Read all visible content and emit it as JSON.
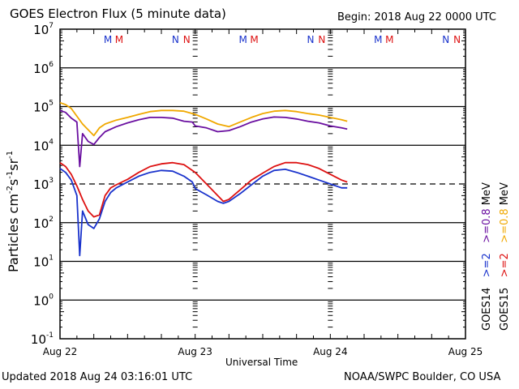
{
  "header": {
    "title": "GOES Electron Flux (5 minute data)",
    "begin": "Begin: 2018 Aug 22 0000 UTC"
  },
  "footer": {
    "updated": "Updated 2018 Aug 24 03:16:01 UTC",
    "credit": "NOAA/SWPC Boulder, CO USA"
  },
  "chart_data": {
    "type": "line",
    "title": "GOES Electron Flux (5 minute data)",
    "xlabel": "Universal Time",
    "ylabel": "Particles cm-2s-1sr-1",
    "ylabel_parts": {
      "main": "Particles cm",
      "e1": "-2",
      "s": "s",
      "e2": "-1",
      "sr": "sr",
      "e3": "-1"
    },
    "xlim_hours": [
      0,
      72
    ],
    "ylim_log10": [
      -1,
      7
    ],
    "yscale": "log",
    "x_tick_labels": [
      "Aug 22",
      "Aug 23",
      "Aug 24",
      "Aug 25"
    ],
    "y_tick_labels": [
      {
        "base": "10",
        "exp": "7"
      },
      {
        "base": "10",
        "exp": "6"
      },
      {
        "base": "10",
        "exp": "5"
      },
      {
        "base": "10",
        "exp": "4"
      },
      {
        "base": "10",
        "exp": "3"
      },
      {
        "base": "10",
        "exp": "2"
      },
      {
        "base": "10",
        "exp": "1"
      },
      {
        "base": "10",
        "exp": "0"
      },
      {
        "base": "10",
        "exp": "-1"
      }
    ],
    "threshold_log10": 3,
    "grid": true,
    "markers": [
      {
        "label": "M",
        "color": "#1a33cc"
      },
      {
        "label": "M",
        "color": "#dd1111"
      },
      {
        "label": "N",
        "color": "#1a33cc"
      },
      {
        "label": "N",
        "color": "#dd1111"
      }
    ],
    "legend": {
      "placement": "right-vertical",
      "rows": [
        {
          "sat": "GOES14",
          "items": [
            {
              "text": ">=2",
              "color": "#1a33cc"
            },
            {
              "text": ">=0.8",
              "color": "#6a0fa0"
            }
          ],
          "unit": "MeV"
        },
        {
          "sat": "GOES15",
          "items": [
            {
              "text": ">=2",
              "color": "#dd1111"
            },
            {
              "text": ">=0.8",
              "color": "#f0a800"
            }
          ],
          "unit": "MeV"
        }
      ]
    },
    "series": [
      {
        "name": "GOES15 >=0.8 MeV",
        "color": "#f0a800",
        "x": [
          0,
          1,
          2,
          3,
          4,
          5,
          6,
          7,
          8,
          10,
          12,
          14,
          16,
          18,
          20,
          22,
          24,
          26,
          28,
          30,
          32,
          34,
          36,
          38,
          40,
          42,
          44,
          46,
          48,
          50,
          51
        ],
        "y": [
          5.1,
          5.05,
          4.95,
          4.75,
          4.55,
          4.4,
          4.25,
          4.45,
          4.55,
          4.65,
          4.72,
          4.8,
          4.87,
          4.9,
          4.9,
          4.88,
          4.8,
          4.68,
          4.55,
          4.48,
          4.6,
          4.72,
          4.82,
          4.88,
          4.9,
          4.87,
          4.82,
          4.78,
          4.72,
          4.66,
          4.62
        ]
      },
      {
        "name": "GOES14 >=0.8 MeV",
        "color": "#6a0fa0",
        "x": [
          0,
          1,
          2,
          3,
          3.5,
          4,
          5,
          6,
          7,
          8,
          10,
          12,
          14,
          16,
          18,
          20,
          22,
          23.5,
          24,
          26,
          28,
          30,
          32,
          34,
          36,
          38,
          40,
          42,
          44,
          46,
          48,
          50,
          51
        ],
        "y": [
          4.9,
          4.85,
          4.7,
          4.6,
          3.45,
          4.3,
          4.1,
          4.02,
          4.2,
          4.35,
          4.48,
          4.58,
          4.66,
          4.72,
          4.72,
          4.7,
          4.62,
          4.6,
          4.5,
          4.45,
          4.35,
          4.38,
          4.48,
          4.6,
          4.68,
          4.73,
          4.72,
          4.68,
          4.62,
          4.58,
          4.5,
          4.45,
          4.42
        ]
      },
      {
        "name": "GOES15 >=2 MeV",
        "color": "#dd1111",
        "x": [
          0,
          1,
          2,
          3,
          4,
          5,
          6,
          7,
          8,
          9,
          10,
          12,
          14,
          16,
          18,
          20,
          22,
          24,
          26,
          28,
          29,
          30,
          32,
          34,
          36,
          38,
          40,
          42,
          44,
          46,
          48,
          50,
          51
        ],
        "y": [
          3.55,
          3.45,
          3.25,
          2.95,
          2.6,
          2.3,
          2.15,
          2.2,
          2.7,
          2.9,
          2.98,
          3.12,
          3.3,
          3.45,
          3.52,
          3.55,
          3.5,
          3.3,
          3.0,
          2.7,
          2.55,
          2.6,
          2.85,
          3.1,
          3.28,
          3.45,
          3.55,
          3.55,
          3.5,
          3.4,
          3.25,
          3.1,
          3.05
        ]
      },
      {
        "name": "GOES14 >=2 MeV",
        "color": "#1a33cc",
        "x": [
          0,
          1,
          2,
          3,
          3.5,
          4,
          5,
          6,
          7,
          8,
          9,
          10,
          12,
          14,
          16,
          18,
          20,
          22,
          23.5,
          24,
          26,
          28,
          29,
          30,
          32,
          34,
          36,
          38,
          40,
          42,
          44,
          46,
          48,
          50,
          51
        ],
        "y": [
          3.4,
          3.3,
          3.1,
          2.7,
          1.15,
          2.3,
          1.95,
          1.85,
          2.1,
          2.55,
          2.78,
          2.9,
          3.05,
          3.2,
          3.3,
          3.35,
          3.33,
          3.2,
          3.05,
          2.88,
          2.72,
          2.55,
          2.5,
          2.55,
          2.75,
          2.98,
          3.2,
          3.35,
          3.38,
          3.3,
          3.2,
          3.1,
          3.0,
          2.9,
          2.9
        ]
      }
    ]
  }
}
